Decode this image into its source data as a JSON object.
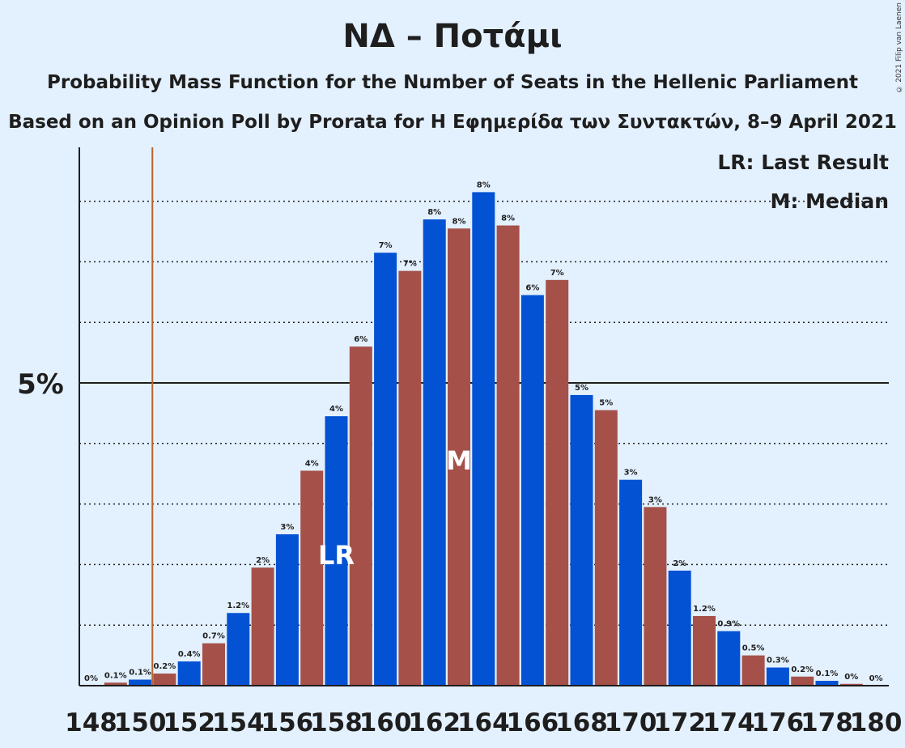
{
  "title": "ΝΔ – Ποτάμι",
  "subtitle1": "Probability Mass Function for the Number of Seats in the Hellenic Parliament",
  "subtitle2": "Based on an Opinion Poll by Prorata for Η Εφημερίδα των Συντακτών, 8–9 April 2021",
  "copyright": "© 2021 Filip van Laenen",
  "legend": {
    "lr": "LR: Last Result",
    "m": "M: Median"
  },
  "colors": {
    "blue": "#0352d3",
    "red": "#a5514a",
    "lr_line": "#b5652b",
    "background": "#e3f0fe"
  },
  "chart_data": {
    "type": "bar",
    "x": [
      148,
      149,
      150,
      151,
      152,
      153,
      154,
      155,
      156,
      157,
      158,
      159,
      160,
      161,
      162,
      163,
      164,
      165,
      166,
      167,
      168,
      169,
      170,
      171,
      172,
      173,
      174,
      175,
      176,
      177,
      178,
      179,
      180
    ],
    "values": [
      0.0,
      0.05,
      0.1,
      0.2,
      0.4,
      0.7,
      1.2,
      1.95,
      2.5,
      3.55,
      4.45,
      5.6,
      7.15,
      6.85,
      7.7,
      7.55,
      8.15,
      7.6,
      6.45,
      6.7,
      4.8,
      4.55,
      3.4,
      2.95,
      1.9,
      1.15,
      0.9,
      0.5,
      0.3,
      0.15,
      0.08,
      0.03,
      0.0
    ],
    "labels": [
      "0%",
      "0.1%",
      "0.1%",
      "0.2%",
      "0.4%",
      "0.7%",
      "1.2%",
      "2%",
      "3%",
      "4%",
      "4%",
      "6%",
      "7%",
      "7%",
      "8%",
      "8%",
      "8%",
      "8%",
      "6%",
      "7%",
      "5%",
      "5%",
      "3%",
      "3%",
      "2%",
      "1.2%",
      "0.9%",
      "0.5%",
      "0.3%",
      "0.2%",
      "0.1%",
      "0%",
      "0%"
    ],
    "xtick_labels": [
      "148",
      "150",
      "152",
      "154",
      "156",
      "158",
      "160",
      "162",
      "164",
      "166",
      "168",
      "170",
      "172",
      "174",
      "176",
      "178",
      "180"
    ],
    "ytick_label": "5%",
    "ylim": [
      0,
      8.9
    ],
    "ytick_value": 5,
    "dotted_grid": [
      1,
      2,
      3,
      4,
      6,
      7,
      8
    ],
    "last_result_seat": 150,
    "lr_bar_seat": 158,
    "median_seat": 163,
    "lr_marker": "LR",
    "median_marker": "M"
  }
}
